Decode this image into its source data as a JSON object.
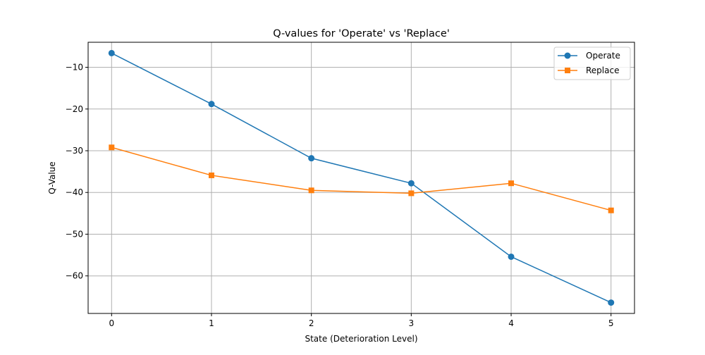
{
  "chart_data": {
    "type": "line",
    "title": "Q-values for 'Operate' vs 'Replace'",
    "xlabel": "State (Deterioration Level)",
    "ylabel": "Q-Value",
    "x": [
      0,
      1,
      2,
      3,
      4,
      5
    ],
    "xticks": [
      "0",
      "1",
      "2",
      "3",
      "4",
      "5"
    ],
    "yticks": [
      -10,
      -20,
      -30,
      -40,
      -50,
      -60
    ],
    "ytick_labels": [
      "−10",
      "−20",
      "−30",
      "−40",
      "−50",
      "−60"
    ],
    "xlim": [
      -0.235,
      5.235
    ],
    "ylim": [
      -69.0,
      -4.0
    ],
    "grid": true,
    "legend_position": "top-right",
    "series": [
      {
        "name": "Operate",
        "color": "#1f77b4",
        "marker": "circle",
        "values": [
          -6.6,
          -18.8,
          -31.8,
          -37.8,
          -55.4,
          -66.4
        ]
      },
      {
        "name": "Replace",
        "color": "#ff7f0e",
        "marker": "square",
        "values": [
          -29.2,
          -35.9,
          -39.5,
          -40.2,
          -37.8,
          -44.3
        ]
      }
    ]
  }
}
